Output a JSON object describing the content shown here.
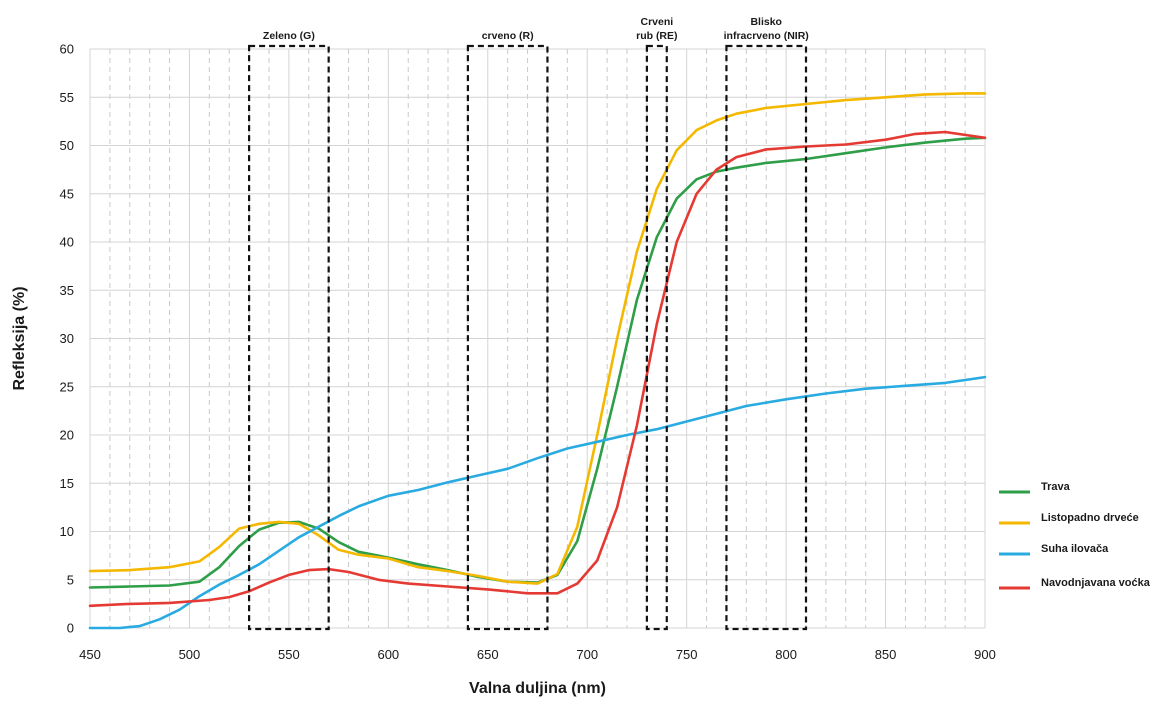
{
  "chart_data": {
    "type": "line",
    "xlabel": "Valna duljina (nm)",
    "ylabel": "Refleksija (%)",
    "xlim": [
      450,
      900
    ],
    "ylim": [
      0,
      60
    ],
    "x_ticks": [
      450,
      500,
      550,
      600,
      650,
      700,
      750,
      800,
      850,
      900
    ],
    "y_ticks": [
      0,
      5,
      10,
      15,
      20,
      25,
      30,
      35,
      40,
      45,
      50,
      55,
      60
    ],
    "grid": "major solid, minor dashed vertical every 10 nm",
    "legend_position": "right",
    "bands": [
      {
        "label_lines": [
          "Zeleno (G)"
        ],
        "x_range": [
          530,
          570
        ]
      },
      {
        "label_lines": [
          "crveno (R)"
        ],
        "x_range": [
          640,
          680
        ]
      },
      {
        "label_lines": [
          "Crveni",
          "rub (RE)"
        ],
        "x_range": [
          730,
          740
        ]
      },
      {
        "label_lines": [
          "Blisko",
          "infracrveno (NIR)"
        ],
        "x_range": [
          770,
          810
        ]
      }
    ],
    "series": [
      {
        "name": "Trava",
        "color": "#2e9e48",
        "x": [
          450,
          470,
          490,
          505,
          515,
          525,
          535,
          545,
          555,
          565,
          575,
          585,
          600,
          615,
          630,
          645,
          660,
          675,
          685,
          695,
          705,
          715,
          725,
          735,
          745,
          755,
          765,
          775,
          790,
          810,
          830,
          850,
          870,
          890,
          900
        ],
        "y": [
          4.2,
          4.3,
          4.4,
          4.8,
          6.3,
          8.5,
          10.2,
          10.9,
          11.0,
          10.3,
          8.9,
          7.9,
          7.3,
          6.6,
          6.0,
          5.3,
          4.8,
          4.7,
          5.5,
          9.0,
          16.5,
          25.0,
          34.0,
          40.5,
          44.5,
          46.5,
          47.3,
          47.7,
          48.2,
          48.6,
          49.2,
          49.8,
          50.3,
          50.7,
          50.8
        ]
      },
      {
        "name": "Listopadno drveće",
        "color": "#f5b800",
        "x": [
          450,
          470,
          490,
          505,
          515,
          525,
          535,
          545,
          555,
          565,
          575,
          585,
          600,
          615,
          630,
          645,
          660,
          675,
          685,
          695,
          705,
          715,
          725,
          735,
          745,
          755,
          765,
          775,
          790,
          810,
          830,
          850,
          870,
          890,
          900
        ],
        "y": [
          5.9,
          6.0,
          6.3,
          6.9,
          8.4,
          10.3,
          10.8,
          11.0,
          10.8,
          9.6,
          8.1,
          7.6,
          7.2,
          6.3,
          5.9,
          5.4,
          4.8,
          4.6,
          5.6,
          10.5,
          20.0,
          30.0,
          39.0,
          45.5,
          49.5,
          51.6,
          52.6,
          53.3,
          53.9,
          54.3,
          54.7,
          55.0,
          55.3,
          55.4,
          55.4
        ]
      },
      {
        "name": "Suha ilovača",
        "color": "#29abe2",
        "x": [
          450,
          465,
          475,
          485,
          495,
          505,
          515,
          525,
          535,
          545,
          555,
          565,
          575,
          585,
          600,
          615,
          630,
          645,
          660,
          675,
          690,
          705,
          720,
          735,
          750,
          765,
          780,
          800,
          820,
          840,
          860,
          880,
          900
        ],
        "y": [
          0,
          0,
          0.2,
          0.9,
          1.9,
          3.3,
          4.5,
          5.5,
          6.6,
          8.0,
          9.4,
          10.5,
          11.6,
          12.6,
          13.7,
          14.3,
          15.1,
          15.8,
          16.5,
          17.6,
          18.6,
          19.3,
          20.0,
          20.6,
          21.4,
          22.2,
          23.0,
          23.7,
          24.3,
          24.8,
          25.1,
          25.4,
          26.0
        ]
      },
      {
        "name": "Navodnjavana voćka",
        "color": "#e53a33",
        "x": [
          450,
          470,
          490,
          510,
          520,
          530,
          540,
          550,
          560,
          570,
          580,
          595,
          610,
          630,
          650,
          670,
          685,
          695,
          705,
          715,
          725,
          735,
          745,
          755,
          765,
          775,
          790,
          810,
          830,
          850,
          865,
          880,
          900
        ],
        "y": [
          2.3,
          2.5,
          2.6,
          2.9,
          3.2,
          3.8,
          4.7,
          5.5,
          6.0,
          6.1,
          5.8,
          5.0,
          4.6,
          4.3,
          4.0,
          3.6,
          3.6,
          4.6,
          7.0,
          12.5,
          21.0,
          31.5,
          40.0,
          45.0,
          47.5,
          48.8,
          49.6,
          49.9,
          50.1,
          50.6,
          51.2,
          51.4,
          50.8
        ]
      }
    ]
  }
}
